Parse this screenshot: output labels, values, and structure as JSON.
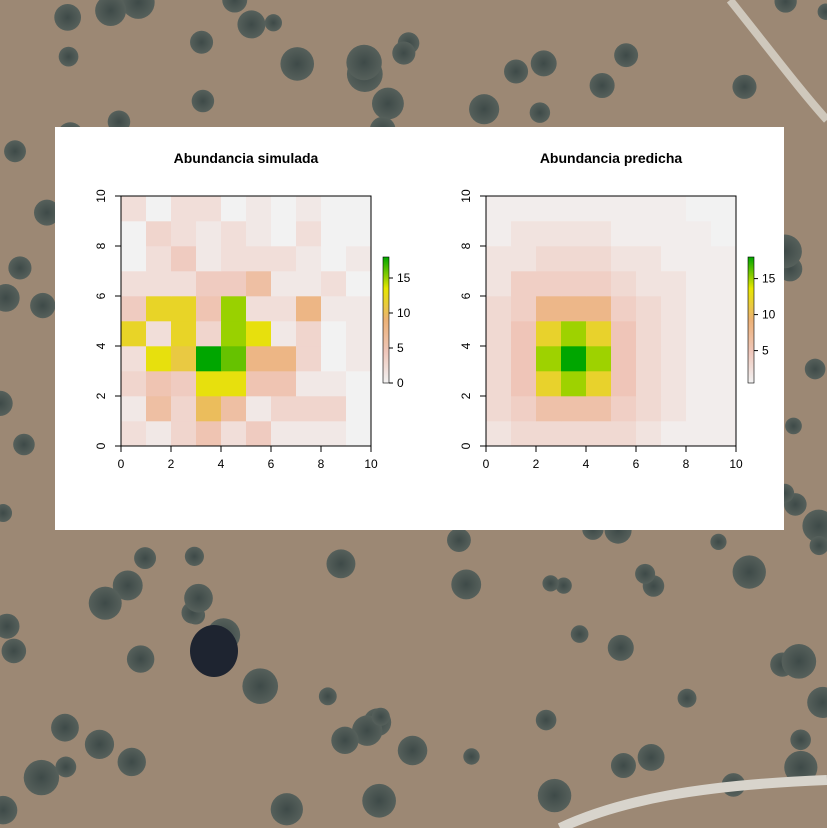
{
  "chart_data": [
    {
      "type": "heatmap",
      "title": "Abundancia simulada",
      "xlim": [
        0,
        10
      ],
      "ylim": [
        0,
        10
      ],
      "xticks": [
        0,
        2,
        4,
        6,
        8,
        10
      ],
      "yticks": [
        0,
        2,
        4,
        6,
        8,
        10
      ],
      "z": [
        [
          2,
          1,
          3,
          5,
          2,
          4,
          1,
          1,
          1,
          0
        ],
        [
          1,
          6,
          3,
          10,
          6,
          1,
          3,
          3,
          3,
          0
        ],
        [
          3,
          5,
          4,
          13,
          13,
          5,
          5,
          1,
          1,
          0
        ],
        [
          2,
          13,
          11,
          18,
          16,
          8,
          8,
          3,
          0,
          1
        ],
        [
          12,
          2,
          12,
          3,
          15,
          13,
          1,
          3,
          0,
          1
        ],
        [
          4,
          12,
          12,
          5,
          15,
          2,
          2,
          8,
          1,
          1
        ],
        [
          2,
          2,
          2,
          4,
          4,
          6,
          1,
          1,
          2,
          0
        ],
        [
          0,
          2,
          4,
          1,
          2,
          2,
          2,
          1,
          0,
          1
        ],
        [
          0,
          3,
          2,
          1,
          2,
          1,
          0,
          2,
          0,
          0
        ],
        [
          2,
          0,
          2,
          2,
          0,
          1,
          0,
          1,
          0,
          0
        ]
      ],
      "zlim": [
        0,
        18
      ],
      "zticks": [
        0,
        5,
        10,
        15
      ],
      "colors": [
        "#f2f2f2",
        "#efc6ba",
        "#ecb176",
        "#e6e600",
        "#00a600"
      ]
    },
    {
      "type": "heatmap",
      "title": "Abundancia predicha",
      "xlim": [
        0,
        10
      ],
      "ylim": [
        0,
        10
      ],
      "xticks": [
        0,
        2,
        4,
        6,
        8,
        10
      ],
      "yticks": [
        0,
        2,
        4,
        6,
        8,
        10
      ],
      "z": [
        [
          2,
          3,
          3,
          3,
          3,
          3,
          2,
          1,
          1,
          1
        ],
        [
          3,
          4,
          6,
          6,
          6,
          4,
          3,
          2,
          1,
          1
        ],
        [
          3,
          5,
          12,
          15,
          12,
          5,
          3,
          2,
          1,
          1
        ],
        [
          3,
          5,
          15,
          18,
          15,
          5,
          3,
          2,
          1,
          1
        ],
        [
          3,
          5,
          12,
          15,
          12,
          5,
          3,
          2,
          1,
          1
        ],
        [
          3,
          4,
          8,
          8,
          8,
          4,
          3,
          2,
          1,
          1
        ],
        [
          2,
          4,
          4,
          4,
          4,
          3,
          2,
          2,
          1,
          1
        ],
        [
          2,
          2,
          3,
          3,
          3,
          2,
          2,
          1,
          1,
          1
        ],
        [
          1,
          2,
          2,
          2,
          2,
          1,
          1,
          1,
          1,
          0
        ],
        [
          1,
          1,
          1,
          1,
          1,
          1,
          1,
          1,
          0,
          0
        ]
      ],
      "zlim": [
        0.5,
        18
      ],
      "zticks": [
        5,
        10,
        15
      ],
      "colors": [
        "#f2f2f2",
        "#efc6ba",
        "#ecb176",
        "#e6e600",
        "#00a600"
      ]
    }
  ]
}
